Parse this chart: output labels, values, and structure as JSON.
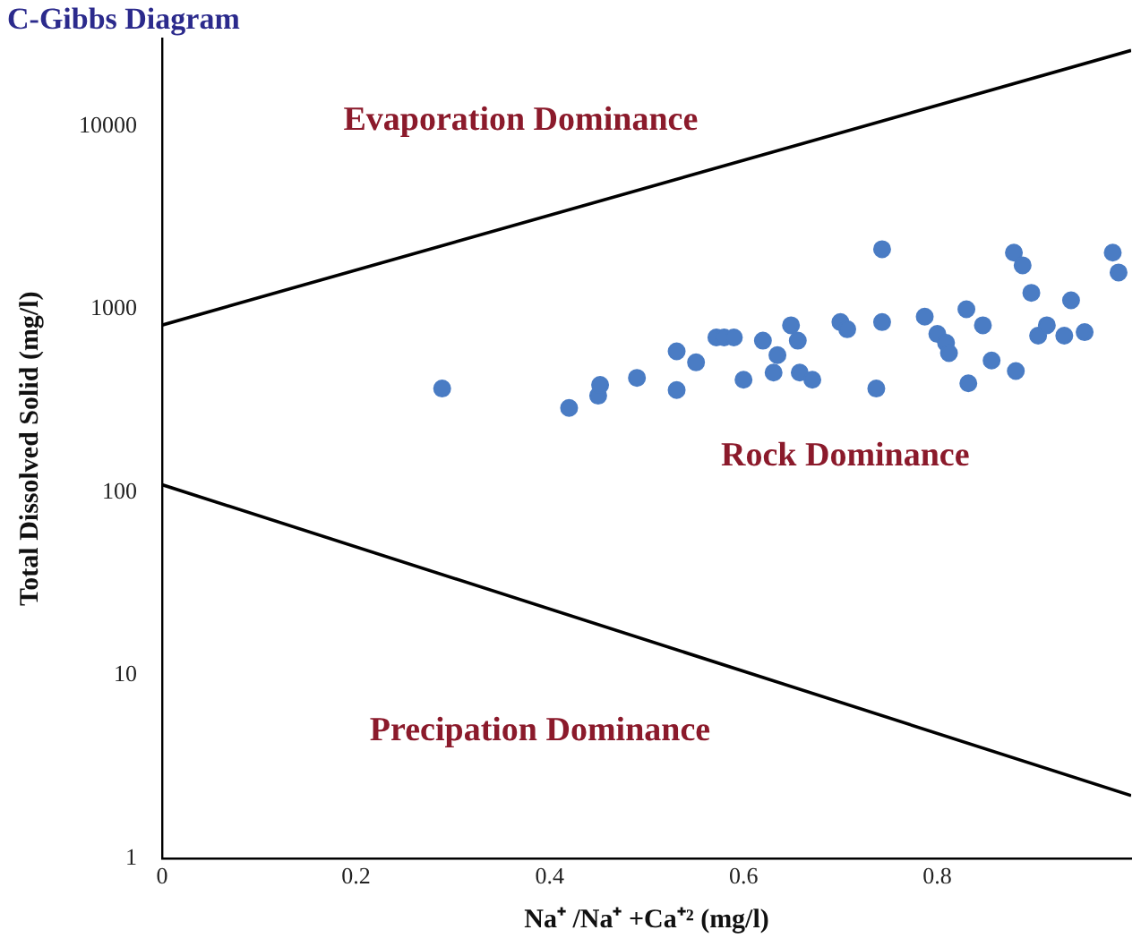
{
  "chart_data": {
    "type": "scatter",
    "title": "C-Gibbs Diagram",
    "xlabel": "Na⁺ /Na⁺ +Ca⁺² (mg/l)",
    "ylabel": "Total Dissolved Solid (mg/l)",
    "log": "y",
    "xlim": [
      0,
      1
    ],
    "ylim": [
      1,
      30000
    ],
    "xticks": [
      0,
      0.2,
      0.4,
      0.6,
      0.8
    ],
    "yticks": [
      1,
      10,
      100,
      1000,
      10000
    ],
    "grid": false,
    "legend": false,
    "series": [
      {
        "color": "#4a7cc4",
        "marker": "circle",
        "x": [
          0.289,
          0.42,
          0.45,
          0.452,
          0.49,
          0.531,
          0.531,
          0.551,
          0.572,
          0.58,
          0.59,
          0.62,
          0.635,
          0.6,
          0.631,
          0.649,
          0.656,
          0.658,
          0.671,
          0.7,
          0.707,
          0.743,
          0.743,
          0.737,
          0.787,
          0.8,
          0.809,
          0.812,
          0.83,
          0.847,
          0.856,
          0.832,
          0.881,
          0.879,
          0.888,
          0.897,
          0.938,
          0.904,
          0.913,
          0.931,
          0.952,
          0.981,
          0.987
        ],
        "values": [
          369,
          289,
          337,
          386,
          422,
          589,
          362,
          513,
          702,
          702,
          702,
          674,
          562,
          412,
          451,
          818,
          674,
          451,
          412,
          851,
          778,
          851,
          2130,
          369,
          912,
          733,
          655,
          576,
          1000,
          818,
          525,
          394,
          460,
          2040,
          1740,
          1230,
          1120,
          718,
          818,
          718,
          750,
          2040,
          1590
        ]
      },
      {
        "type": "line",
        "color": "#000000",
        "marker": "none",
        "x": [
          0,
          1
        ],
        "values": [
          820,
          26000
        ]
      },
      {
        "type": "line",
        "color": "#000000",
        "marker": "none",
        "x": [
          0,
          1
        ],
        "values": [
          110,
          2.2
        ]
      }
    ],
    "annotations": [
      "Evaporation Dominance",
      "Rock Dominance",
      "Precipation Dominance"
    ]
  }
}
